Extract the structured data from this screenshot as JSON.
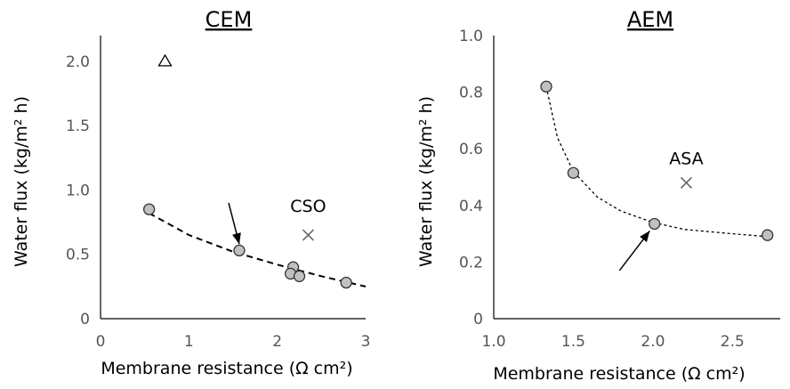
{
  "chart_data": [
    {
      "type": "scatter",
      "title": "CEM",
      "xlabel": "Membrane resistance (Ω cm²)",
      "ylabel": "Water flux (kg/m² h)",
      "xlim": [
        0,
        3
      ],
      "ylim": [
        0,
        2.2
      ],
      "xticks": [
        "0",
        "1",
        "2",
        "3"
      ],
      "yticks": [
        "0",
        "0.5",
        "1.0",
        "1.5",
        "2.0"
      ],
      "grid": false,
      "series": [
        {
          "marker": "circle",
          "color": "#c0c0c0",
          "x": [
            0.55,
            1.57,
            2.18,
            2.15,
            2.25,
            2.78
          ],
          "y": [
            0.85,
            0.53,
            0.4,
            0.35,
            0.33,
            0.28
          ]
        },
        {
          "marker": "triangle",
          "color": "#ffffff",
          "x": [
            0.73
          ],
          "y": [
            2.0
          ]
        },
        {
          "marker": "x",
          "color": "#666666",
          "x": [
            2.35
          ],
          "y": [
            0.65
          ]
        }
      ],
      "trend": {
        "style": "dashed",
        "color": "#000000",
        "x": [
          0.55,
          1.0,
          1.5,
          2.0,
          2.5,
          3.0
        ],
        "y": [
          0.82,
          0.65,
          0.52,
          0.42,
          0.33,
          0.25
        ]
      },
      "annotations": [
        {
          "text": "CSO",
          "x": 2.35,
          "y": 0.83
        },
        {
          "text": "",
          "type": "arrow",
          "from": [
            1.45,
            0.9
          ],
          "to": [
            1.57,
            0.58
          ]
        }
      ]
    },
    {
      "type": "scatter",
      "title": "AEM",
      "xlabel": "Membrane resistance (Ω cm²)",
      "ylabel": "Water flux (kg/m² h)",
      "xlim": [
        1.0,
        2.8
      ],
      "ylim": [
        0,
        1.0
      ],
      "xticks": [
        "1.0",
        "1.5",
        "2.0",
        "2.5"
      ],
      "yticks": [
        "0",
        "0.2",
        "0.4",
        "0.6",
        "0.8",
        "1.0"
      ],
      "grid": false,
      "series": [
        {
          "marker": "circle",
          "color": "#c0c0c0",
          "x": [
            1.33,
            1.5,
            2.01,
            2.72
          ],
          "y": [
            0.82,
            0.515,
            0.335,
            0.295
          ]
        },
        {
          "marker": "x",
          "color": "#666666",
          "x": [
            2.21
          ],
          "y": [
            0.48
          ]
        }
      ],
      "trend": {
        "style": "dotted",
        "color": "#000000",
        "x": [
          1.33,
          1.4,
          1.5,
          1.65,
          1.8,
          2.0,
          2.2,
          2.5,
          2.72
        ],
        "y": [
          0.82,
          0.64,
          0.52,
          0.43,
          0.38,
          0.34,
          0.315,
          0.3,
          0.29
        ]
      },
      "annotations": [
        {
          "text": "ASA",
          "x": 2.21,
          "y": 0.545
        },
        {
          "text": "",
          "type": "arrow",
          "from": [
            1.79,
            0.17
          ],
          "to": [
            1.98,
            0.31
          ]
        }
      ]
    }
  ]
}
